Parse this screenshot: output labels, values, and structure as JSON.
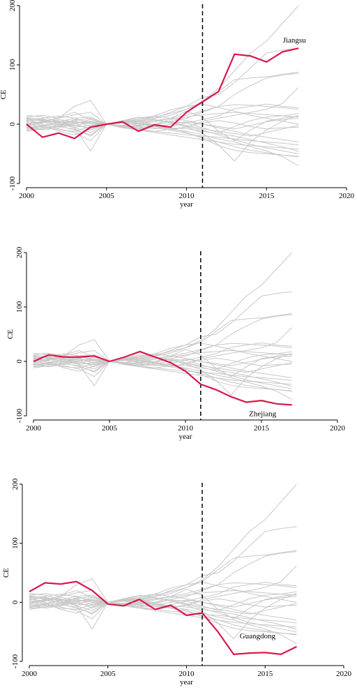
{
  "colors": {
    "highlight": "#d9174a",
    "background_series": "#c8c8c8",
    "axis": "#000000",
    "treatment_line": "#000000"
  },
  "chart_data": [
    {
      "type": "line",
      "title": "",
      "xlabel": "year",
      "ylabel": "CE",
      "xlim": [
        2000,
        2020
      ],
      "ylim": [
        -100,
        200
      ],
      "xticks": [
        2000,
        2005,
        2010,
        2015,
        2020
      ],
      "yticks": [
        -100,
        0,
        100,
        200
      ],
      "vline_x": 2011,
      "highlight": {
        "name": "Jiangsu",
        "x": [
          2000,
          2001,
          2002,
          2003,
          2004,
          2005,
          2006,
          2007,
          2008,
          2009,
          2010,
          2011,
          2012,
          2013,
          2014,
          2015,
          2016,
          2017
        ],
        "values": [
          0,
          -22,
          -15,
          -24,
          -5,
          0,
          4,
          -12,
          -1,
          -5,
          20,
          38,
          55,
          118,
          115,
          105,
          122,
          128
        ]
      },
      "grid": false,
      "legend": "none"
    },
    {
      "type": "line",
      "title": "",
      "xlabel": "year",
      "ylabel": "CE",
      "xlim": [
        2000,
        2020
      ],
      "ylim": [
        -100,
        200
      ],
      "xticks": [
        2000,
        2005,
        2010,
        2015,
        2020
      ],
      "yticks": [
        -100,
        0,
        100,
        200
      ],
      "vline_x": 2011,
      "highlight": {
        "name": "Zhejiang",
        "x": [
          2000,
          2001,
          2002,
          2003,
          2004,
          2005,
          2006,
          2007,
          2008,
          2009,
          2010,
          2011,
          2012,
          2013,
          2014,
          2015,
          2016,
          2017
        ],
        "values": [
          0,
          12,
          8,
          8,
          10,
          0,
          8,
          18,
          8,
          -2,
          -18,
          -42,
          -52,
          -65,
          -75,
          -72,
          -78,
          -80
        ]
      },
      "grid": false,
      "legend": "none"
    },
    {
      "type": "line",
      "title": "",
      "xlabel": "year",
      "ylabel": "CE",
      "xlim": [
        2000,
        2020
      ],
      "ylim": [
        -100,
        200
      ],
      "xticks": [
        2000,
        2005,
        2010,
        2015,
        2020
      ],
      "yticks": [
        -100,
        0,
        100,
        200
      ],
      "vline_x": 2011,
      "highlight": {
        "name": "Guangdong",
        "x": [
          2000,
          2001,
          2002,
          2003,
          2004,
          2005,
          2006,
          2007,
          2008,
          2009,
          2010,
          2011,
          2012,
          2013,
          2014,
          2015,
          2016,
          2017
        ],
        "values": [
          18,
          33,
          31,
          35,
          20,
          -3,
          -6,
          5,
          -12,
          -5,
          -22,
          -18,
          -50,
          -88,
          -86,
          -85,
          -88,
          -75
        ]
      },
      "grid": false,
      "legend": "none"
    }
  ],
  "background_series": {
    "x": [
      2000,
      2001,
      2002,
      2003,
      2004,
      2005,
      2006,
      2007,
      2008,
      2009,
      2010,
      2011,
      2012,
      2013,
      2014,
      2015,
      2016,
      2017
    ],
    "series": [
      {
        "values": [
          5,
          8,
          2,
          -3,
          4,
          0,
          3,
          5,
          10,
          15,
          25,
          38,
          60,
          90,
          120,
          140,
          170,
          200
        ]
      },
      {
        "values": [
          -5,
          -2,
          3,
          6,
          -4,
          0,
          5,
          8,
          12,
          18,
          25,
          35,
          55,
          75,
          78,
          80,
          84,
          88
        ]
      },
      {
        "values": [
          10,
          5,
          0,
          -5,
          -2,
          0,
          2,
          6,
          10,
          20,
          30,
          45,
          50,
          70,
          95,
          120,
          125,
          128
        ]
      },
      {
        "values": [
          -10,
          -8,
          -4,
          2,
          5,
          0,
          -3,
          -6,
          -2,
          5,
          10,
          20,
          30,
          50,
          65,
          78,
          83,
          86
        ]
      },
      {
        "values": [
          3,
          -2,
          -12,
          -18,
          -8,
          0,
          -4,
          -10,
          -12,
          -8,
          -5,
          5,
          10,
          15,
          20,
          25,
          35,
          62
        ]
      },
      {
        "values": [
          12,
          15,
          10,
          30,
          40,
          0,
          -6,
          -3,
          0,
          4,
          -5,
          -15,
          -35,
          -62,
          -30,
          -10,
          5,
          15
        ]
      },
      {
        "values": [
          -3,
          2,
          8,
          4,
          0,
          0,
          6,
          10,
          14,
          24,
          30,
          34,
          28,
          22,
          15,
          10,
          5,
          0
        ]
      },
      {
        "values": [
          8,
          6,
          4,
          2,
          -10,
          0,
          4,
          2,
          -4,
          -8,
          -12,
          -18,
          -25,
          -30,
          -38,
          -45,
          -55,
          -70
        ]
      },
      {
        "values": [
          -8,
          -6,
          -4,
          8,
          4,
          0,
          -2,
          2,
          6,
          10,
          15,
          22,
          30,
          33,
          32,
          30,
          28,
          25
        ]
      },
      {
        "values": [
          2,
          4,
          -4,
          -8,
          -20,
          0,
          2,
          -2,
          0,
          8,
          12,
          16,
          18,
          20,
          18,
          16,
          14,
          12
        ]
      },
      {
        "values": [
          15,
          12,
          5,
          -2,
          -6,
          0,
          -5,
          -8,
          -12,
          -15,
          -18,
          -20,
          -22,
          -25,
          -28,
          -30,
          -32,
          -35
        ]
      },
      {
        "values": [
          -12,
          -8,
          -2,
          -10,
          -18,
          0,
          4,
          6,
          -2,
          -10,
          -15,
          -22,
          -30,
          -38,
          -44,
          -48,
          -52,
          -55
        ]
      },
      {
        "values": [
          6,
          2,
          12,
          20,
          8,
          0,
          2,
          0,
          6,
          4,
          2,
          -6,
          -14,
          -4,
          6,
          12,
          14,
          18
        ]
      },
      {
        "values": [
          -6,
          -4,
          0,
          6,
          10,
          0,
          -4,
          -2,
          4,
          10,
          22,
          12,
          -12,
          -28,
          -10,
          5,
          10,
          14
        ]
      },
      {
        "values": [
          0,
          3,
          6,
          -6,
          -14,
          0,
          2,
          4,
          8,
          2,
          -4,
          -10,
          -18,
          -26,
          -34,
          -40,
          -45,
          -50
        ]
      },
      {
        "values": [
          9,
          7,
          -1,
          4,
          2,
          0,
          -2,
          -4,
          -6,
          -10,
          -4,
          2,
          6,
          2,
          -4,
          -8,
          -6,
          -5
        ]
      },
      {
        "values": [
          -4,
          -10,
          -6,
          0,
          8,
          0,
          4,
          2,
          -2,
          -6,
          -14,
          -24,
          -36,
          -44,
          -48,
          -50,
          -52,
          -54
        ]
      },
      {
        "values": [
          4,
          10,
          14,
          10,
          2,
          0,
          -2,
          -6,
          -8,
          -4,
          2,
          8,
          14,
          26,
          30,
          34,
          30,
          28
        ]
      },
      {
        "values": [
          -9,
          -3,
          4,
          10,
          12,
          0,
          -4,
          -8,
          -4,
          0,
          4,
          0,
          -6,
          -12,
          -18,
          -22,
          -26,
          -30
        ]
      },
      {
        "values": [
          1,
          -5,
          -10,
          -12,
          -4,
          0,
          6,
          12,
          8,
          2,
          -2,
          -8,
          -12,
          -16,
          -20,
          -14,
          -8,
          -2
        ]
      },
      {
        "values": [
          7,
          0,
          -8,
          -14,
          -28,
          0,
          4,
          8,
          14,
          10,
          6,
          0,
          -4,
          -8,
          -2,
          4,
          8,
          10
        ]
      },
      {
        "values": [
          -2,
          5,
          10,
          16,
          20,
          0,
          -6,
          -10,
          -14,
          -18,
          -22,
          -26,
          -30,
          -34,
          -36,
          -38,
          -40,
          -42
        ]
      },
      {
        "values": [
          11,
          9,
          2,
          -6,
          -45,
          0,
          2,
          0,
          -4,
          -6,
          -8,
          -12,
          -16,
          -20,
          -26,
          -32,
          -38,
          -46
        ]
      }
    ]
  }
}
